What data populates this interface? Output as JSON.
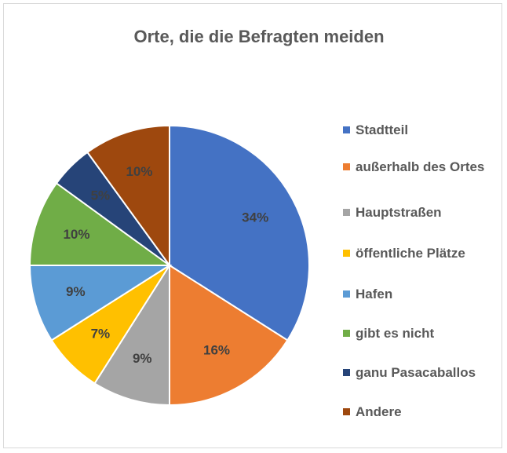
{
  "chart_data": {
    "type": "pie",
    "title": "Orte, die die Befragten meiden",
    "categories": [
      "Stadtteil",
      "außerhalb des Ortes",
      "Hauptstraßen",
      "öffentliche Plätze",
      "Hafen",
      "gibt es nicht",
      "ganu Pasacaballos",
      "Andere"
    ],
    "values": [
      34,
      16,
      9,
      7,
      9,
      10,
      5,
      10
    ],
    "value_labels": [
      "34%",
      "16%",
      "9%",
      "7%",
      "9%",
      "10%",
      "5%",
      "10%"
    ],
    "colors": [
      "#4472c4",
      "#ed7d31",
      "#a5a5a5",
      "#ffc000",
      "#5b9bd5",
      "#70ad47",
      "#264478",
      "#9e480e"
    ],
    "legend": "right"
  }
}
